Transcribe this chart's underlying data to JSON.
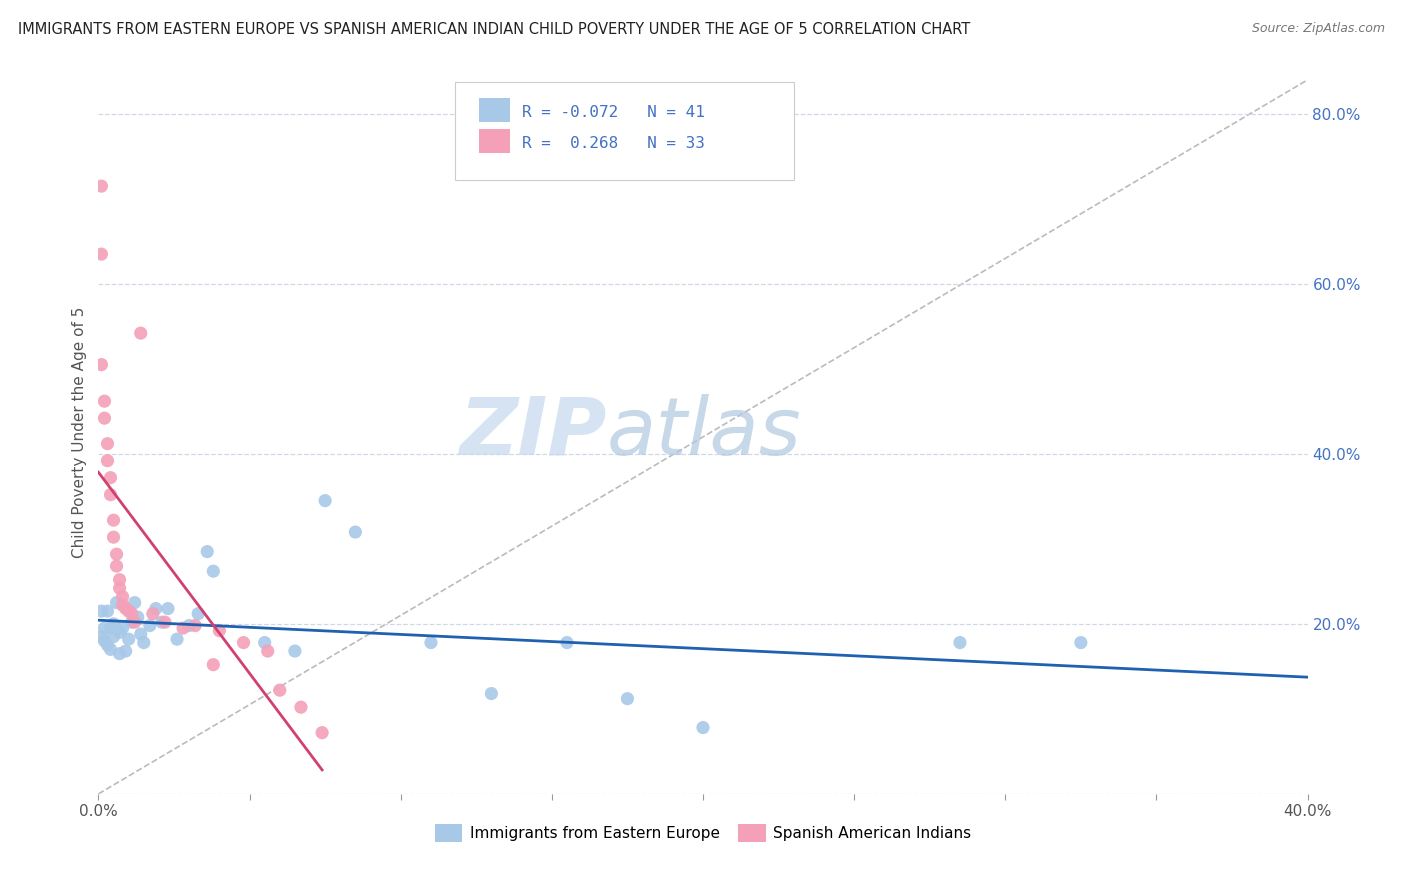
{
  "title": "IMMIGRANTS FROM EASTERN EUROPE VS SPANISH AMERICAN INDIAN CHILD POVERTY UNDER THE AGE OF 5 CORRELATION CHART",
  "source": "Source: ZipAtlas.com",
  "ylabel": "Child Poverty Under the Age of 5",
  "x_min": 0.0,
  "x_max": 0.4,
  "y_min": 0.0,
  "y_max": 0.85,
  "blue_R": -0.072,
  "blue_N": 41,
  "pink_R": 0.268,
  "pink_N": 33,
  "blue_color": "#a8c8e8",
  "pink_color": "#f4a0b8",
  "blue_line_color": "#2060b0",
  "pink_line_color": "#d04070",
  "watermark_zip": "ZIP",
  "watermark_atlas": "atlas",
  "grid_color": "#d0d8e8",
  "background_color": "#ffffff",
  "blue_scatter_x": [
    0.001,
    0.001,
    0.002,
    0.002,
    0.003,
    0.003,
    0.004,
    0.004,
    0.005,
    0.005,
    0.006,
    0.007,
    0.007,
    0.008,
    0.009,
    0.01,
    0.011,
    0.012,
    0.013,
    0.014,
    0.015,
    0.017,
    0.019,
    0.021,
    0.023,
    0.026,
    0.03,
    0.033,
    0.036,
    0.038,
    0.055,
    0.065,
    0.075,
    0.085,
    0.11,
    0.13,
    0.155,
    0.175,
    0.2,
    0.285,
    0.325
  ],
  "blue_scatter_y": [
    0.215,
    0.185,
    0.195,
    0.18,
    0.175,
    0.215,
    0.17,
    0.195,
    0.185,
    0.2,
    0.225,
    0.165,
    0.19,
    0.195,
    0.168,
    0.182,
    0.202,
    0.225,
    0.208,
    0.188,
    0.178,
    0.198,
    0.218,
    0.202,
    0.218,
    0.182,
    0.198,
    0.212,
    0.285,
    0.262,
    0.178,
    0.168,
    0.345,
    0.308,
    0.178,
    0.118,
    0.178,
    0.112,
    0.078,
    0.178,
    0.178
  ],
  "pink_scatter_x": [
    0.001,
    0.001,
    0.001,
    0.002,
    0.002,
    0.003,
    0.003,
    0.004,
    0.004,
    0.005,
    0.005,
    0.006,
    0.006,
    0.007,
    0.007,
    0.008,
    0.008,
    0.009,
    0.01,
    0.011,
    0.012,
    0.014,
    0.018,
    0.022,
    0.028,
    0.032,
    0.038,
    0.04,
    0.048,
    0.056,
    0.06,
    0.067,
    0.074
  ],
  "pink_scatter_y": [
    0.715,
    0.635,
    0.505,
    0.462,
    0.442,
    0.412,
    0.392,
    0.372,
    0.352,
    0.322,
    0.302,
    0.282,
    0.268,
    0.252,
    0.242,
    0.232,
    0.222,
    0.218,
    0.215,
    0.212,
    0.202,
    0.542,
    0.212,
    0.202,
    0.195,
    0.198,
    0.152,
    0.192,
    0.178,
    0.168,
    0.122,
    0.102,
    0.072
  ],
  "legend_labels": [
    "Immigrants from Eastern Europe",
    "Spanish American Indians"
  ],
  "x_ticks": [
    0.0,
    0.05,
    0.1,
    0.15,
    0.2,
    0.25,
    0.3,
    0.35,
    0.4
  ],
  "x_tick_labels": [
    "0.0%",
    "",
    "",
    "",
    "",
    "",
    "",
    "",
    "40.0%"
  ],
  "y_ticks_right": [
    0.0,
    0.2,
    0.4,
    0.6,
    0.8
  ],
  "y_tick_labels_right": [
    "",
    "20.0%",
    "40.0%",
    "60.0%",
    "80.0%"
  ]
}
